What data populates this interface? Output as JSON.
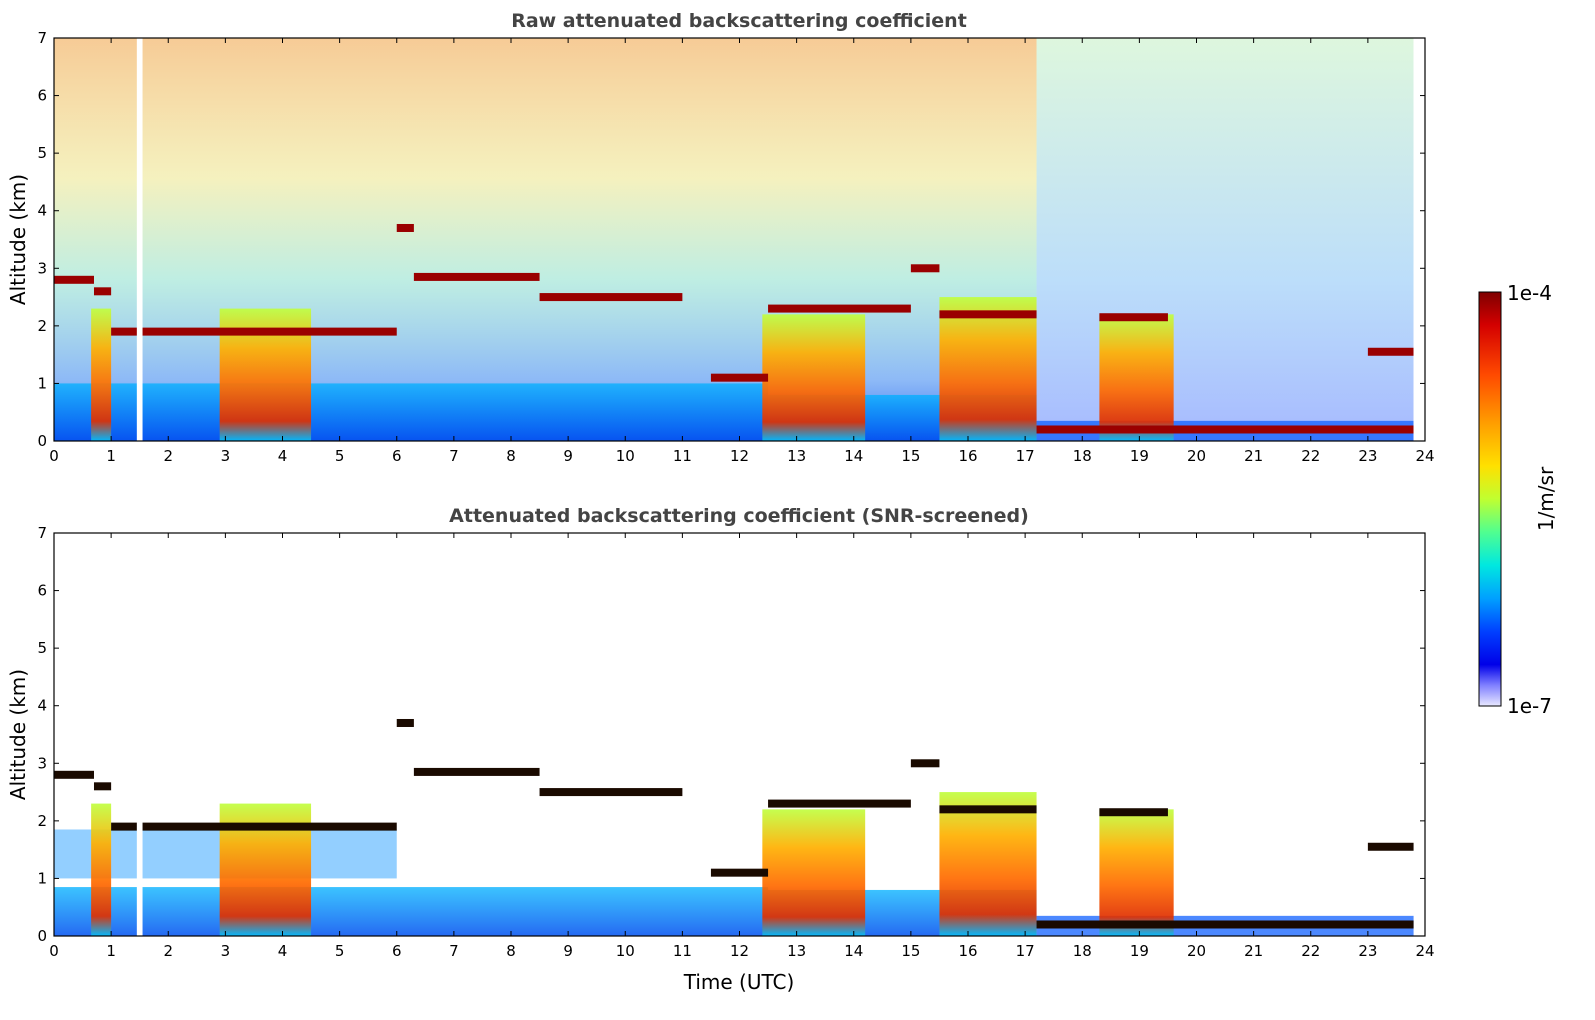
{
  "chart_data": [
    {
      "type": "heatmap",
      "title": "Raw attenuated backscattering coefficient",
      "xlabel": "",
      "ylabel": "Altitude (km)",
      "xlim": [
        0,
        24
      ],
      "ylim": [
        0,
        7
      ],
      "xticks": [
        0,
        1,
        2,
        3,
        4,
        5,
        6,
        7,
        8,
        9,
        10,
        11,
        12,
        13,
        14,
        15,
        16,
        17,
        18,
        19,
        20,
        21,
        22,
        23,
        24
      ],
      "yticks": [
        0,
        1,
        2,
        3,
        4,
        5,
        6,
        7
      ],
      "data_gap": [
        1.45,
        1.55
      ],
      "end_time": 23.8,
      "cloud_layers": [
        {
          "t0": 0.0,
          "t1": 0.7,
          "alt": 2.8
        },
        {
          "t0": 0.7,
          "t1": 1.0,
          "alt": 2.6
        },
        {
          "t0": 1.0,
          "t1": 6.0,
          "alt": 1.9
        },
        {
          "t0": 6.0,
          "t1": 6.3,
          "alt": 3.7
        },
        {
          "t0": 6.3,
          "t1": 8.5,
          "alt": 2.85
        },
        {
          "t0": 8.5,
          "t1": 11.0,
          "alt": 2.5
        },
        {
          "t0": 11.5,
          "t1": 12.5,
          "alt": 1.1
        },
        {
          "t0": 12.5,
          "t1": 15.0,
          "alt": 2.3
        },
        {
          "t0": 15.0,
          "t1": 15.5,
          "alt": 3.0
        },
        {
          "t0": 15.5,
          "t1": 17.2,
          "alt": 2.2
        },
        {
          "t0": 18.3,
          "t1": 19.5,
          "alt": 2.15
        },
        {
          "t0": 23.0,
          "t1": 23.8,
          "alt": 1.55
        },
        {
          "t0": 17.2,
          "t1": 23.8,
          "alt": 0.2
        }
      ],
      "precip_columns": [
        {
          "t0": 0.65,
          "t1": 1.0,
          "top": 2.3
        },
        {
          "t0": 2.9,
          "t1": 4.5,
          "top": 2.3
        },
        {
          "t0": 12.4,
          "t1": 14.2,
          "top": 2.2
        },
        {
          "t0": 15.5,
          "t1": 17.2,
          "top": 2.5
        },
        {
          "t0": 18.3,
          "t1": 19.6,
          "top": 2.2
        }
      ]
    },
    {
      "type": "heatmap",
      "title": "Attenuated backscattering coefficient (SNR-screened)",
      "xlabel": "Time (UTC)",
      "ylabel": "Altitude (km)",
      "xlim": [
        0,
        24
      ],
      "ylim": [
        0,
        7
      ],
      "xticks": [
        0,
        1,
        2,
        3,
        4,
        5,
        6,
        7,
        8,
        9,
        10,
        11,
        12,
        13,
        14,
        15,
        16,
        17,
        18,
        19,
        20,
        21,
        22,
        23,
        24
      ],
      "yticks": [
        0,
        1,
        2,
        3,
        4,
        5,
        6,
        7
      ]
    }
  ],
  "colorbar": {
    "label": "1/m/sr",
    "max_label": "1e-4",
    "min_label": "1e-7",
    "colors": [
      "#7f0000",
      "#d40000",
      "#ff4a00",
      "#ffa000",
      "#ffe000",
      "#c0ff30",
      "#50ff90",
      "#00e8e0",
      "#00a0ff",
      "#0040ff",
      "#0000e8",
      "#8080ff",
      "#e8e8ff"
    ]
  }
}
